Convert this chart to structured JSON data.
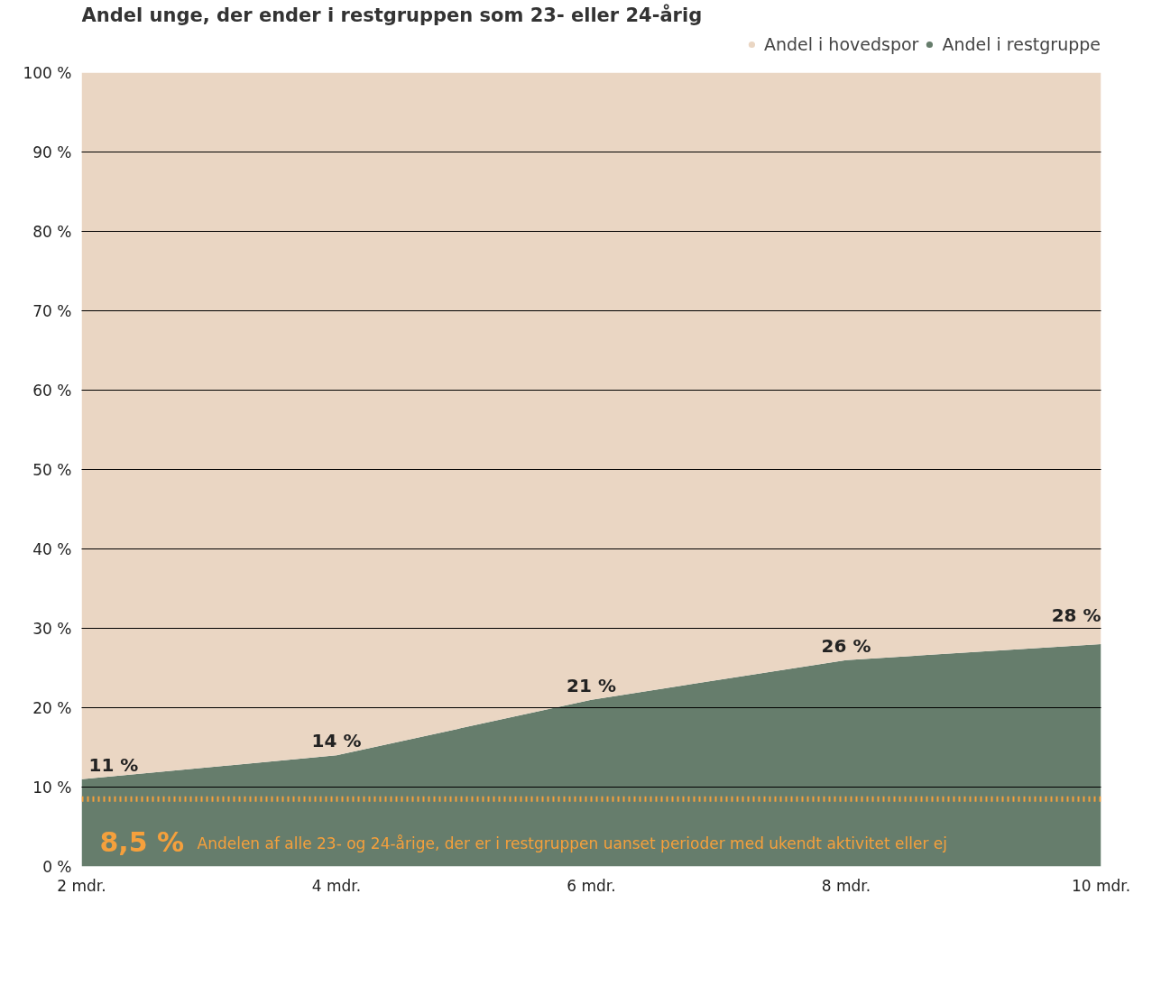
{
  "chart_data": {
    "type": "area",
    "stacked": true,
    "title": "Andel unge, der ender i restgruppen som 23- eller 24-årig",
    "categories": [
      "2 mdr.",
      "4 mdr.",
      "6 mdr.",
      "8 mdr.",
      "10 mdr."
    ],
    "series": [
      {
        "name": "Andel i restgruppe",
        "color": "#667d6c",
        "values": [
          11,
          14,
          21,
          26,
          28
        ],
        "value_labels": [
          "11 %",
          "14 %",
          "21 %",
          "26 %",
          "28 %"
        ]
      },
      {
        "name": "Andel i hovedspor",
        "color": "#ead6c3",
        "values": [
          89,
          86,
          79,
          74,
          72
        ]
      }
    ],
    "ylim": [
      0,
      100
    ],
    "yticks": [
      {
        "value": 0,
        "label": "0 %"
      },
      {
        "value": 10,
        "label": "10 %"
      },
      {
        "value": 20,
        "label": "20 %"
      },
      {
        "value": 30,
        "label": "30 %"
      },
      {
        "value": 40,
        "label": "40 %"
      },
      {
        "value": 50,
        "label": "50 %"
      },
      {
        "value": 60,
        "label": "60 %"
      },
      {
        "value": 70,
        "label": "70 %"
      },
      {
        "value": 80,
        "label": "80 %"
      },
      {
        "value": 90,
        "label": "90 %"
      },
      {
        "value": 100,
        "label": "100 %"
      }
    ],
    "ref_lines": [
      {
        "axis": "y",
        "value": 8.5,
        "label": "8,5 %",
        "color": "#f5a03c",
        "line_style": "dotted"
      }
    ],
    "annotations": [
      "Andelen af alle 23- og 24-årige, der er i restgruppen uanset perioder med ukendt aktivitet eller ej"
    ],
    "grid": "y",
    "legend": "top right"
  }
}
